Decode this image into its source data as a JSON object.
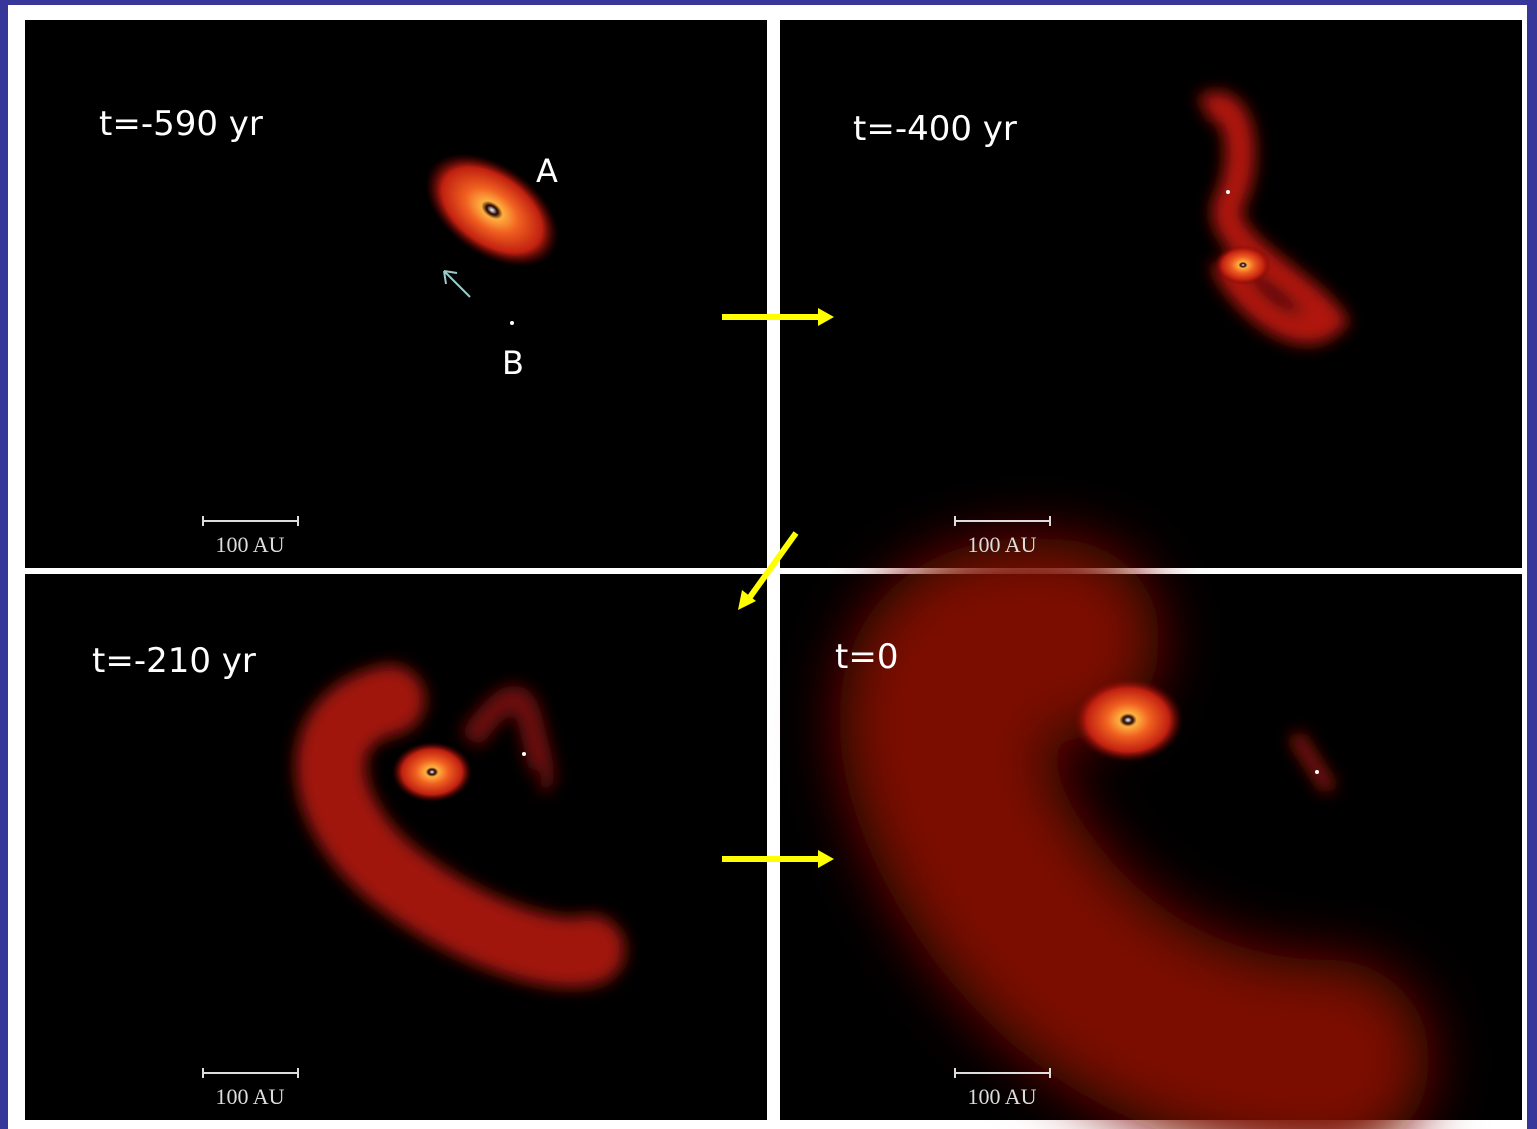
{
  "panels": [
    {
      "time": "t=-590 yr",
      "scale": "100 AU",
      "labels": [
        "A",
        "B"
      ]
    },
    {
      "time": "t=-400 yr",
      "scale": "100 AU"
    },
    {
      "time": "t=-210 yr",
      "scale": "100 AU"
    },
    {
      "time": "t=0",
      "scale": "100 AU"
    }
  ]
}
